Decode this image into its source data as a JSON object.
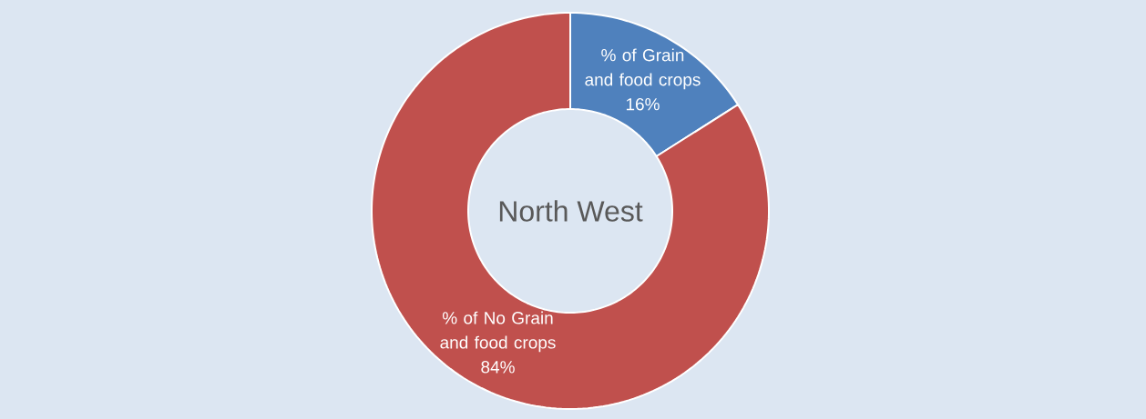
{
  "chart_data": {
    "type": "donut",
    "title": "North West",
    "categories": [
      "% of Grain and food crops",
      "% of No Grain and food crops"
    ],
    "values": [
      16,
      84
    ],
    "colors": [
      "#4f81bd",
      "#c0504d"
    ],
    "value_labels": [
      "16%",
      "84%"
    ]
  }
}
